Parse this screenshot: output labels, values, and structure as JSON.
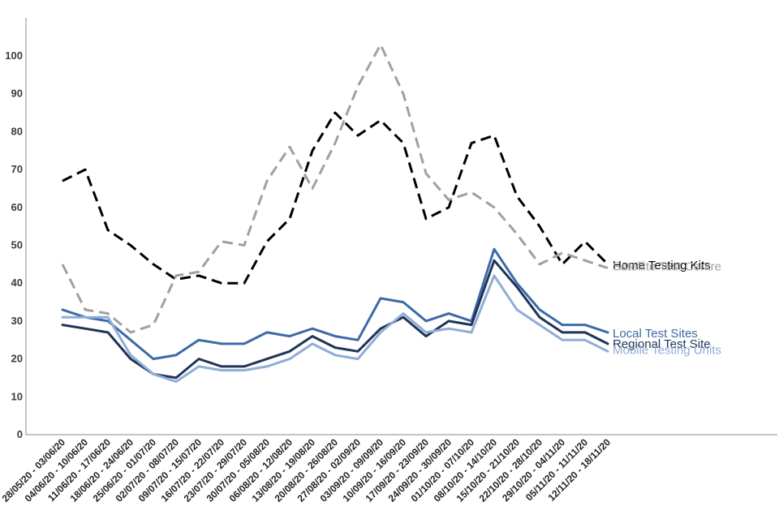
{
  "chart_data": {
    "type": "line",
    "title": "",
    "xlabel": "",
    "ylabel": "",
    "ylim": [
      0,
      110
    ],
    "yticks": [
      0,
      10,
      20,
      30,
      40,
      50,
      60,
      70,
      80,
      90,
      100
    ],
    "grid": false,
    "legend": "inline labels at line ends",
    "categories": [
      "28/05/20 - 03/06/20",
      "04/06/20 - 10/06/20",
      "11/06/20 - 17/06/20",
      "18/06/20 - 24/06/20",
      "25/06/20 - 01/07/20",
      "02/07/20 - 08/07/20",
      "09/07/20 - 15/07/20",
      "16/07/20 - 22/07/20",
      "23/07/20 - 29/07/20",
      "30/07/20 - 05/08/20",
      "06/08/20 - 12/08/20",
      "13/08/20 - 19/08/20",
      "20/08/20 - 26/08/20",
      "27/08/20 - 02/09/20",
      "03/09/20 - 09/09/20",
      "10/09/20 - 16/09/20",
      "17/09/20 - 23/09/20",
      "24/09/20 - 30/09/20",
      "01/10/20 - 07/10/20",
      "08/10/20 - 14/10/20",
      "15/10/20 - 21/10/20",
      "22/10/20 - 28/10/20",
      "29/10/20 - 04/11/20",
      "05/11/20 - 11/11/20",
      "12/11/20 - 18/11/20"
    ],
    "series": [
      {
        "name": "Home Testing Kits",
        "color": "#000000",
        "dash": true,
        "values": [
          67,
          70,
          54,
          50,
          45,
          41,
          42,
          40,
          40,
          51,
          57,
          75,
          85,
          79,
          83,
          77,
          57,
          60,
          77,
          79,
          63,
          55,
          45,
          51,
          45
        ]
      },
      {
        "name": "Satellite Test Centre",
        "color": "#a0a0a0",
        "dash": true,
        "values": [
          45,
          33,
          32,
          27,
          29,
          42,
          43,
          51,
          50,
          67,
          76,
          65,
          77,
          92,
          103,
          90,
          69,
          62,
          64,
          60,
          53,
          45,
          48,
          46,
          44
        ]
      },
      {
        "name": "Local Test Sites",
        "color": "#3c6aa8",
        "dash": false,
        "values": [
          33,
          31,
          30,
          25,
          20,
          21,
          25,
          24,
          24,
          27,
          26,
          28,
          26,
          25,
          36,
          35,
          30,
          32,
          30,
          49,
          40,
          33,
          29,
          29,
          27
        ]
      },
      {
        "name": "Regional Test Site",
        "color": "#1f3456",
        "dash": false,
        "values": [
          29,
          28,
          27,
          20,
          16,
          15,
          20,
          18,
          18,
          20,
          22,
          26,
          23,
          22,
          28,
          31,
          26,
          30,
          29,
          46,
          39,
          31,
          27,
          27,
          24
        ]
      },
      {
        "name": "Mobile Testing Units",
        "color": "#8fadd6",
        "dash": false,
        "values": [
          31,
          31,
          31,
          21,
          16,
          14,
          18,
          17,
          17,
          18,
          20,
          24,
          21,
          20,
          27,
          32,
          27,
          28,
          27,
          42,
          33,
          29,
          25,
          25,
          22
        ]
      }
    ]
  }
}
